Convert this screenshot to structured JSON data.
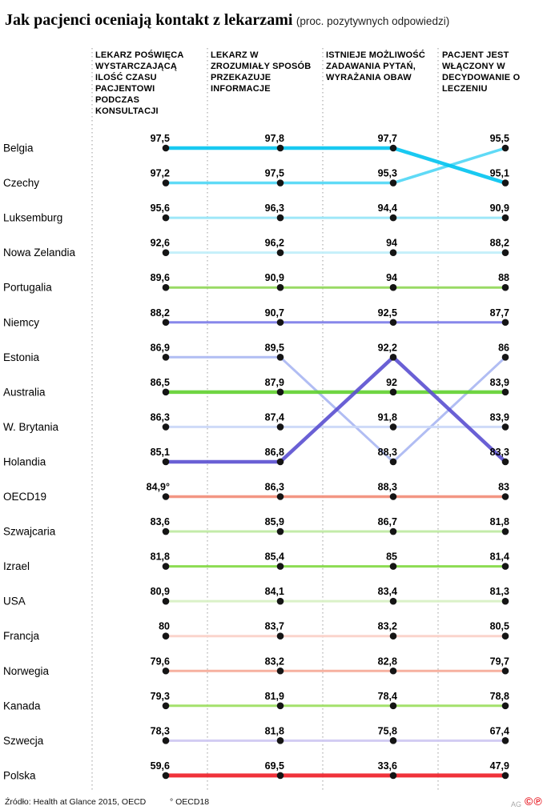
{
  "title": "Jak pacjenci oceniają kontakt z lekarzami",
  "subtitle": "(proc. pozytywnych odpowiedzi)",
  "footer": {
    "source": "Źródło: Health at Glance 2015, OECD",
    "note": "° OECD18",
    "credit": "AG",
    "marks": "©℗"
  },
  "chart_data": {
    "type": "line",
    "variant": "bump-rank-chart",
    "legend_position": "left-row-labels",
    "value_format": "percent, comma decimal separator",
    "categories": [
      "LEKARZ POŚWIĘCA WYSTARCZAJĄCĄ ILOŚĆ CZASU PACJENTOWI PODCZAS KONSULTACJI",
      "LEKARZ W ZROZUMIAŁY SPOSÓB PRZEKAZUJE INFORMACJE",
      "ISTNIEJE MOŻLIWOŚĆ ZADAWANIA PYTAŃ, WYRAŻANIA OBAW",
      "PACJENT JEST WŁĄCZONY W DECYDOWANIE O LECZENIU"
    ],
    "series": [
      {
        "name": "Belgia",
        "values": [
          97.5,
          97.8,
          97.7,
          95.1
        ],
        "labels": [
          "97,5",
          "97,8",
          "97,7",
          "95,1"
        ],
        "color": "#00c3ef",
        "width": 4.5
      },
      {
        "name": "Czechy",
        "values": [
          97.2,
          97.5,
          95.3,
          95.5
        ],
        "labels": [
          "97,2",
          "97,5",
          "95,3",
          "95,5"
        ],
        "color": "#4ed6f5",
        "width": 3.5
      },
      {
        "name": "Luksemburg",
        "values": [
          95.6,
          96.3,
          94.4,
          90.9
        ],
        "labels": [
          "95,6",
          "96,3",
          "94,4",
          "90,9"
        ],
        "color": "#93e4f7",
        "width": 3
      },
      {
        "name": "Nowa Zelandia",
        "values": [
          92.6,
          96.2,
          94.0,
          88.2
        ],
        "labels": [
          "92,6",
          "96,2",
          "94",
          "88,2"
        ],
        "color": "#bfeef9",
        "width": 3
      },
      {
        "name": "Portugalia",
        "values": [
          89.6,
          90.9,
          94.0,
          88.0
        ],
        "labels": [
          "89,6",
          "90,9",
          "94",
          "88"
        ],
        "color": "#8ed654",
        "width": 3
      },
      {
        "name": "Niemcy",
        "values": [
          88.2,
          90.7,
          92.5,
          87.7
        ],
        "labels": [
          "88,2",
          "90,7",
          "92,5",
          "87,7"
        ],
        "color": "#7a7ae8",
        "width": 3
      },
      {
        "name": "Estonia",
        "values": [
          86.9,
          89.5,
          88.3,
          86.0
        ],
        "labels": [
          "86,9",
          "89,5",
          "88,3",
          "86"
        ],
        "color": "#a9b6f2",
        "width": 3
      },
      {
        "name": "Australia",
        "values": [
          86.5,
          87.9,
          92.0,
          83.9
        ],
        "labels": [
          "86,5",
          "87,9",
          "92",
          "83,9"
        ],
        "color": "#5fd02e",
        "width": 4.5
      },
      {
        "name": "W. Brytania",
        "values": [
          86.3,
          87.4,
          91.8,
          83.9
        ],
        "labels": [
          "86,3",
          "87,4",
          "91,8",
          "83,9"
        ],
        "color": "#c9d6f7",
        "width": 3
      },
      {
        "name": "Holandia",
        "values": [
          85.1,
          86.8,
          92.2,
          83.3
        ],
        "labels": [
          "85,1",
          "86,8",
          "92,2",
          "83,3"
        ],
        "color": "#5a4fd0",
        "width": 4.5
      },
      {
        "name": "OECD19",
        "values": [
          84.9,
          86.3,
          88.3,
          83.0
        ],
        "labels": [
          "84,9°",
          "86,3",
          "88,3",
          "83"
        ],
        "color": "#f28b76",
        "width": 3.5
      },
      {
        "name": "Szwajcaria",
        "values": [
          83.6,
          85.9,
          86.7,
          81.8
        ],
        "labels": [
          "83,6",
          "85,9",
          "86,7",
          "81,8"
        ],
        "color": "#bce9a0",
        "width": 3
      },
      {
        "name": "Izrael",
        "values": [
          81.8,
          85.4,
          85.0,
          81.4
        ],
        "labels": [
          "81,8",
          "85,4",
          "85",
          "81,4"
        ],
        "color": "#7fd83f",
        "width": 3
      },
      {
        "name": "USA",
        "values": [
          80.9,
          84.1,
          83.4,
          81.3
        ],
        "labels": [
          "80,9",
          "84,1",
          "83,4",
          "81,3"
        ],
        "color": "#d6efc2",
        "width": 3
      },
      {
        "name": "Francja",
        "values": [
          80.0,
          83.7,
          83.2,
          80.5
        ],
        "labels": [
          "80",
          "83,7",
          "83,2",
          "80,5"
        ],
        "color": "#f9cfc6",
        "width": 3
      },
      {
        "name": "Norwegia",
        "values": [
          79.6,
          83.2,
          82.8,
          79.7
        ],
        "labels": [
          "79,6",
          "83,2",
          "82,8",
          "79,7"
        ],
        "color": "#f5a896",
        "width": 3
      },
      {
        "name": "Kanada",
        "values": [
          79.3,
          81.9,
          78.4,
          78.8
        ],
        "labels": [
          "79,3",
          "81,9",
          "78,4",
          "78,8"
        ],
        "color": "#9ade5c",
        "width": 3
      },
      {
        "name": "Szwecja",
        "values": [
          78.3,
          81.8,
          75.8,
          67.4
        ],
        "labels": [
          "78,3",
          "81,8",
          "75,8",
          "67,4"
        ],
        "color": "#cdc6f2",
        "width": 3
      },
      {
        "name": "Polska",
        "values": [
          59.6,
          69.5,
          33.6,
          47.9
        ],
        "labels": [
          "59,6",
          "69,5",
          "33,6",
          "47,9"
        ],
        "color": "#ee1c25",
        "width": 5
      }
    ]
  }
}
